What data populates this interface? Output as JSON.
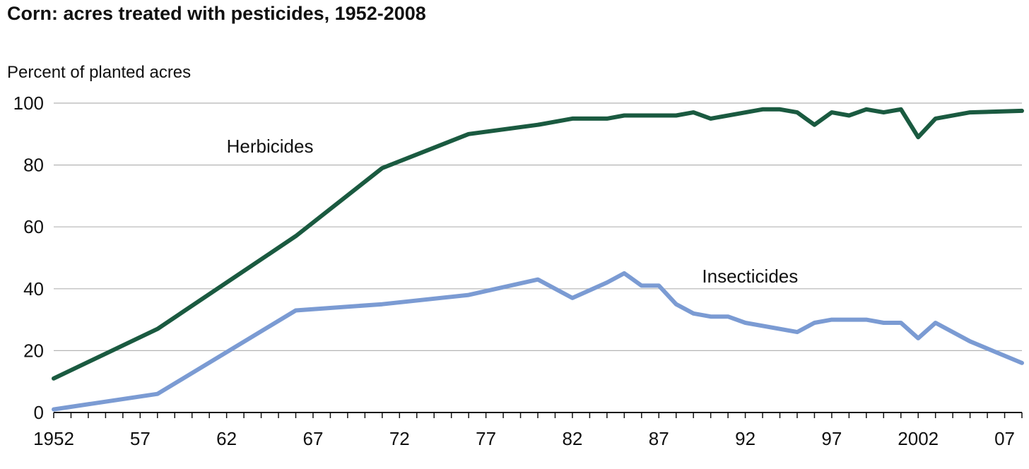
{
  "chart_data": {
    "type": "line",
    "title": "Corn: acres treated with pesticides, 1952-2008",
    "ylabel": "Percent of planted acres",
    "xlabel": "",
    "ylim": [
      0,
      100
    ],
    "xlim": [
      1952,
      2008
    ],
    "yticks": [
      0,
      20,
      40,
      60,
      80,
      100
    ],
    "xtick_labels": [
      {
        "x": 1952,
        "label": "1952"
      },
      {
        "x": 1957,
        "label": "57"
      },
      {
        "x": 1962,
        "label": "62"
      },
      {
        "x": 1967,
        "label": "67"
      },
      {
        "x": 1972,
        "label": "72"
      },
      {
        "x": 1977,
        "label": "77"
      },
      {
        "x": 1982,
        "label": "82"
      },
      {
        "x": 1987,
        "label": "87"
      },
      {
        "x": 1992,
        "label": "92"
      },
      {
        "x": 1997,
        "label": "97"
      },
      {
        "x": 2002,
        "label": "2002"
      },
      {
        "x": 2007,
        "label": "07"
      }
    ],
    "grid": true,
    "series": [
      {
        "name": "Herbicides",
        "color": "#1a5a40",
        "points": [
          [
            1952,
            11
          ],
          [
            1958,
            27
          ],
          [
            1966,
            57
          ],
          [
            1971,
            79
          ],
          [
            1976,
            90
          ],
          [
            1980,
            93
          ],
          [
            1982,
            95
          ],
          [
            1984,
            95
          ],
          [
            1985,
            96
          ],
          [
            1986,
            96
          ],
          [
            1987,
            96
          ],
          [
            1988,
            96
          ],
          [
            1989,
            97
          ],
          [
            1990,
            95
          ],
          [
            1993,
            98
          ],
          [
            1994,
            98
          ],
          [
            1995,
            97
          ],
          [
            1996,
            93
          ],
          [
            1997,
            97
          ],
          [
            1998,
            96
          ],
          [
            1999,
            98
          ],
          [
            2000,
            97
          ],
          [
            2001,
            98
          ],
          [
            2002,
            89
          ],
          [
            2003,
            95
          ],
          [
            2005,
            97
          ],
          [
            2008,
            97.5
          ]
        ]
      },
      {
        "name": "Insecticides",
        "color": "#7b9bd3",
        "points": [
          [
            1952,
            1
          ],
          [
            1958,
            6
          ],
          [
            1966,
            33
          ],
          [
            1971,
            35
          ],
          [
            1976,
            38
          ],
          [
            1980,
            43
          ],
          [
            1982,
            37
          ],
          [
            1984,
            42
          ],
          [
            1985,
            45
          ],
          [
            1986,
            41
          ],
          [
            1987,
            41
          ],
          [
            1988,
            35
          ],
          [
            1989,
            32
          ],
          [
            1990,
            31
          ],
          [
            1991,
            31
          ],
          [
            1992,
            29
          ],
          [
            1995,
            26
          ],
          [
            1996,
            29
          ],
          [
            1997,
            30
          ],
          [
            1998,
            30
          ],
          [
            1999,
            30
          ],
          [
            2000,
            29
          ],
          [
            2001,
            29
          ],
          [
            2002,
            24
          ],
          [
            2003,
            29
          ],
          [
            2005,
            23
          ],
          [
            2008,
            16
          ]
        ]
      }
    ]
  }
}
